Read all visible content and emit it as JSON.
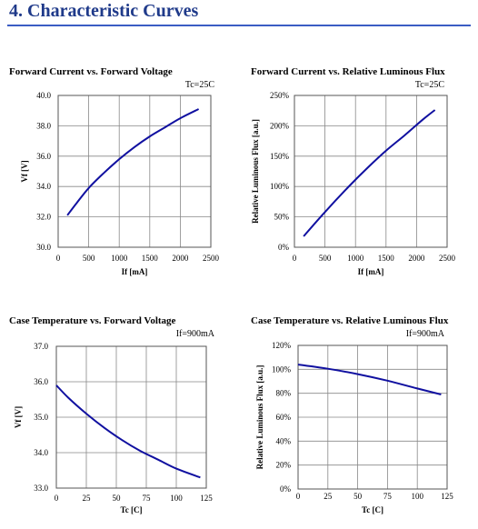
{
  "page": {
    "heading": "4. Characteristic Curves"
  },
  "style": {
    "curve_color": "#1010a0",
    "grid_color": "#888888",
    "heading_color": "#1f3a8a"
  },
  "chart_data": [
    {
      "type": "line",
      "title": "Forward Current vs. Forward Voltage",
      "condition": "Tc=25C",
      "xlabel": "If [mA]",
      "ylabel": "Vf [V]",
      "xlim": [
        0,
        2500
      ],
      "ylim": [
        30.0,
        40.0
      ],
      "xticks": [
        0,
        500,
        1000,
        1500,
        2000,
        2500
      ],
      "yticks": [
        30.0,
        32.0,
        34.0,
        36.0,
        38.0,
        40.0
      ],
      "xtick_labels": [
        "0",
        "500",
        "1000",
        "1500",
        "2000",
        "2500"
      ],
      "ytick_labels": [
        "30.0",
        "32.0",
        "34.0",
        "36.0",
        "38.0",
        "40.0"
      ],
      "grid": true,
      "series": [
        {
          "x": [
            150,
            300,
            500,
            750,
            1000,
            1250,
            1500,
            1750,
            2000,
            2300
          ],
          "y": [
            32.1,
            32.9,
            33.9,
            34.9,
            35.8,
            36.6,
            37.3,
            37.9,
            38.5,
            39.1
          ]
        }
      ]
    },
    {
      "type": "line",
      "title": "Forward Current vs. Relative Luminous Flux",
      "condition": "Tc=25C",
      "xlabel": "If [mA]",
      "ylabel": "Relative Luminous Flux [a.u.]",
      "xlim": [
        0,
        2500
      ],
      "ylim": [
        0,
        250
      ],
      "xticks": [
        0,
        500,
        1000,
        1500,
        2000,
        2500
      ],
      "yticks": [
        0,
        50,
        100,
        150,
        200,
        250
      ],
      "xtick_labels": [
        "0",
        "500",
        "1000",
        "1500",
        "2000",
        "2500"
      ],
      "ytick_labels": [
        "0%",
        "50%",
        "100%",
        "150%",
        "200%",
        "250%"
      ],
      "grid": true,
      "series": [
        {
          "x": [
            150,
            500,
            900,
            1200,
            1500,
            1800,
            2100,
            2300
          ],
          "y": [
            18,
            58,
            101,
            131,
            159,
            184,
            210,
            226
          ]
        }
      ]
    },
    {
      "type": "line",
      "title": "Case Temperature vs. Forward Voltage",
      "condition": "If=900mA",
      "xlabel": "Tc [C]",
      "ylabel": "Vf [V]",
      "xlim": [
        0,
        125
      ],
      "ylim": [
        33.0,
        37.0
      ],
      "xticks": [
        0,
        25,
        50,
        75,
        100,
        125
      ],
      "yticks": [
        33.0,
        34.0,
        35.0,
        36.0,
        37.0
      ],
      "xtick_labels": [
        "0",
        "25",
        "50",
        "75",
        "100",
        "125"
      ],
      "ytick_labels": [
        "33.0",
        "34.0",
        "35.0",
        "36.0",
        "37.0"
      ],
      "grid": true,
      "series": [
        {
          "x": [
            0,
            10,
            25,
            40,
            55,
            70,
            85,
            100,
            120
          ],
          "y": [
            35.9,
            35.55,
            35.1,
            34.7,
            34.35,
            34.05,
            33.8,
            33.55,
            33.3
          ]
        }
      ]
    },
    {
      "type": "line",
      "title": "Case Temperature vs. Relative Luminous Flux",
      "condition": "If=900mA",
      "xlabel": "Tc [C]",
      "ylabel": "Relative Luminous Flux [a.u.]",
      "xlim": [
        0,
        125
      ],
      "ylim": [
        0,
        120
      ],
      "xticks": [
        0,
        25,
        50,
        75,
        100,
        125
      ],
      "yticks": [
        0,
        20,
        40,
        60,
        80,
        100,
        120
      ],
      "xtick_labels": [
        "0",
        "25",
        "50",
        "75",
        "100",
        "125"
      ],
      "ytick_labels": [
        "0%",
        "20%",
        "40%",
        "60%",
        "80%",
        "100%",
        "120%"
      ],
      "grid": true,
      "series": [
        {
          "x": [
            0,
            25,
            50,
            75,
            100,
            120
          ],
          "y": [
            104,
            100.5,
            96,
            90.5,
            84,
            79
          ]
        }
      ]
    }
  ]
}
